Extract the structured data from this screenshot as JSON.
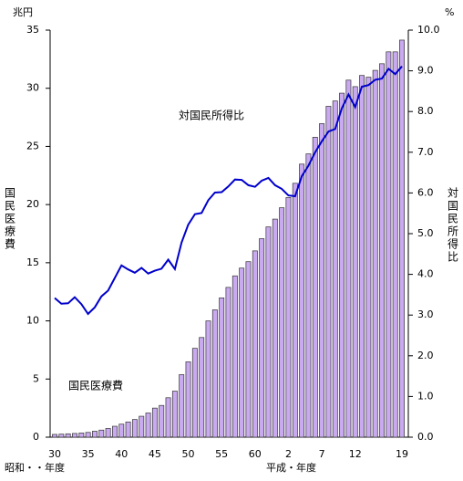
{
  "chart_data": {
    "type": "bar",
    "yunit": "兆円",
    "y2unit": "%",
    "ylabel": "国民医療費",
    "y2label": "対国民所得比",
    "xlabel_left": "昭和・・年度",
    "xlabel_right": "平成・年度",
    "categories": [
      "30",
      null,
      null,
      null,
      null,
      "35",
      null,
      null,
      null,
      null,
      "40",
      null,
      null,
      null,
      null,
      "45",
      null,
      null,
      null,
      null,
      "50",
      null,
      null,
      null,
      null,
      "55",
      null,
      null,
      null,
      null,
      "60",
      null,
      null,
      null,
      null,
      "2",
      null,
      null,
      null,
      null,
      "7",
      null,
      null,
      null,
      null,
      "12",
      null,
      null,
      null,
      null,
      null,
      null,
      "19"
    ],
    "series": [
      {
        "name": "国民医療費",
        "type": "bar",
        "axis": "y",
        "color": "#c9a9ef",
        "values": [
          0.24,
          0.26,
          0.29,
          0.32,
          0.36,
          0.41,
          0.51,
          0.61,
          0.75,
          0.94,
          1.12,
          1.31,
          1.52,
          1.8,
          2.08,
          2.5,
          2.73,
          3.39,
          3.96,
          5.38,
          6.48,
          7.64,
          8.57,
          10.0,
          10.95,
          11.98,
          12.88,
          13.87,
          14.54,
          15.09,
          16.02,
          17.07,
          18.08,
          18.75,
          19.73,
          20.61,
          21.83,
          23.48,
          24.36,
          25.79,
          26.96,
          28.45,
          28.91,
          29.58,
          30.7,
          30.14,
          31.1,
          30.95,
          31.54,
          32.11,
          33.13,
          33.13,
          34.14
        ]
      },
      {
        "name": "対国民所得比",
        "type": "line",
        "axis": "y2",
        "color": "#0000cc",
        "values": [
          3.42,
          3.28,
          3.29,
          3.44,
          3.27,
          3.03,
          3.19,
          3.46,
          3.6,
          3.91,
          4.22,
          4.12,
          4.04,
          4.16,
          4.02,
          4.09,
          4.14,
          4.36,
          4.13,
          4.78,
          5.22,
          5.48,
          5.51,
          5.82,
          6.01,
          6.02,
          6.16,
          6.33,
          6.32,
          6.19,
          6.15,
          6.3,
          6.37,
          6.19,
          6.1,
          5.94,
          5.92,
          6.41,
          6.67,
          7.0,
          7.27,
          7.51,
          7.57,
          8.08,
          8.42,
          8.11,
          8.61,
          8.65,
          8.78,
          8.81,
          9.05,
          8.92,
          9.11
        ]
      }
    ],
    "ylim": [
      0,
      35
    ],
    "yticks": [
      0,
      5,
      10,
      15,
      20,
      25,
      30,
      35
    ],
    "y2lim": [
      0,
      10
    ],
    "y2ticks": [
      {
        "value": 0,
        "label": "0.0"
      },
      {
        "value": 1,
        "label": "1.0"
      },
      {
        "value": 2,
        "label": "2.0"
      },
      {
        "value": 3,
        "label": "3.0"
      },
      {
        "value": 4,
        "label": "4.0"
      },
      {
        "value": 5,
        "label": "5.0"
      },
      {
        "value": 6,
        "label": "6.0"
      },
      {
        "value": 7,
        "label": "7.0"
      },
      {
        "value": 8,
        "label": "8.0"
      },
      {
        "value": 9,
        "label": "9.0"
      },
      {
        "value": 10,
        "label": "10.0"
      }
    ],
    "grid": false
  }
}
